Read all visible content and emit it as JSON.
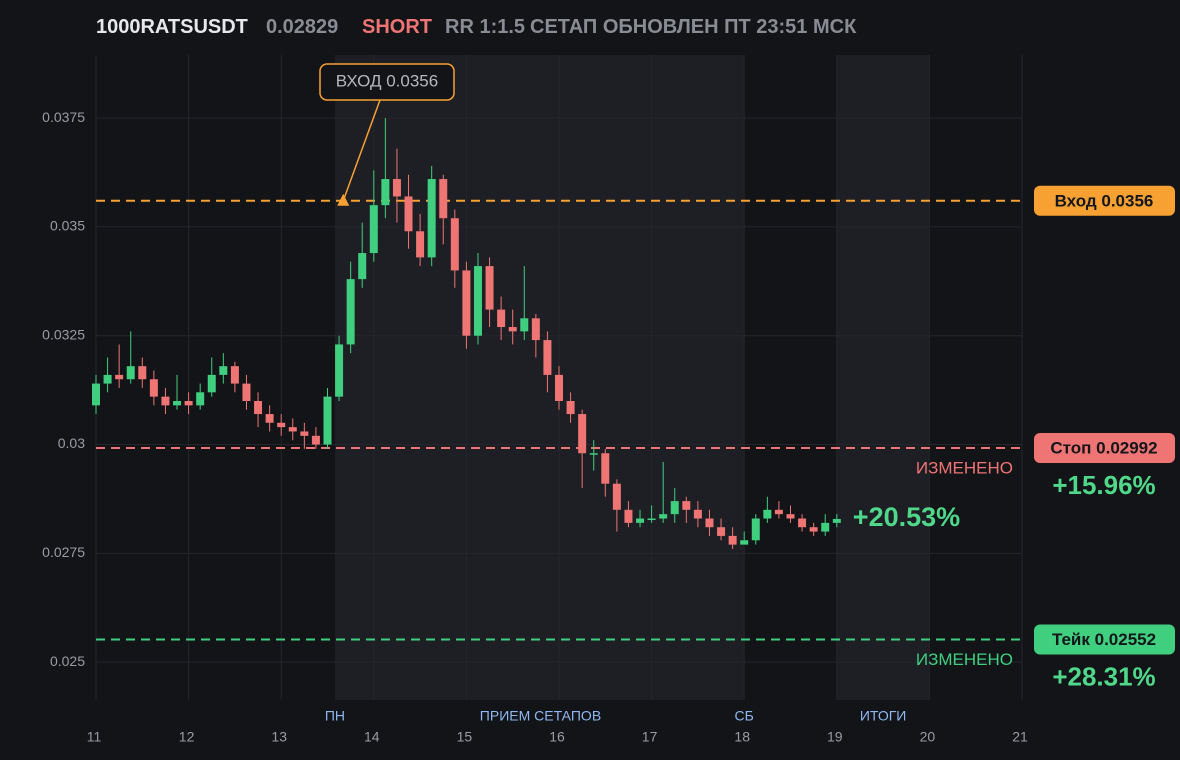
{
  "chart_data": {
    "type": "candlestick",
    "header": {
      "symbol": "1000RATSUSDT",
      "price": 0.02829,
      "side": "SHORT",
      "rr": "RR 1:1.5",
      "updated": "СЕТАП ОБНОВЛЕН ПТ 23:51 МСК"
    },
    "xlim": [
      11,
      21
    ],
    "xticks": [
      11,
      12,
      13,
      14,
      15,
      16,
      17,
      18,
      19,
      20,
      21
    ],
    "ylim": [
      0.02413,
      0.03895
    ],
    "yticks": [
      0.025,
      0.0275,
      0.03,
      0.0325,
      0.035,
      0.0375
    ],
    "grid": true,
    "up_color": "#3fcf7f",
    "down_color": "#ef7474",
    "shaded": [
      [
        13.58,
        18.0
      ],
      [
        19.0,
        20.0
      ]
    ],
    "sessions": [
      {
        "label": "ПН",
        "x": 13.58
      },
      {
        "label": "ПРИЕМ СЕТАПОВ",
        "x": 15.8
      },
      {
        "label": "СБ",
        "x": 18.0
      },
      {
        "label": "ИТОГИ",
        "x": 19.5
      }
    ],
    "x": [
      11.0,
      11.125,
      11.25,
      11.375,
      11.5,
      11.625,
      11.75,
      11.875,
      12.0,
      12.125,
      12.25,
      12.375,
      12.5,
      12.625,
      12.75,
      12.875,
      13.0,
      13.125,
      13.25,
      13.375,
      13.5,
      13.625,
      13.75,
      13.875,
      14.0,
      14.125,
      14.25,
      14.375,
      14.5,
      14.625,
      14.75,
      14.875,
      15.0,
      15.125,
      15.25,
      15.375,
      15.5,
      15.625,
      15.75,
      15.875,
      16.0,
      16.125,
      16.25,
      16.375,
      16.5,
      16.625,
      16.75,
      16.875,
      17.0,
      17.125,
      17.25,
      17.375,
      17.5,
      17.625,
      17.75,
      17.875,
      18.0,
      18.125,
      18.25,
      18.375,
      18.5,
      18.625,
      18.75,
      18.875,
      19.0
    ],
    "open": [
      0.0309,
      0.0314,
      0.0316,
      0.0315,
      0.0318,
      0.0315,
      0.0311,
      0.0309,
      0.031,
      0.0309,
      0.0312,
      0.0316,
      0.0318,
      0.0314,
      0.031,
      0.0307,
      0.0305,
      0.0304,
      0.0303,
      0.0302,
      0.03,
      0.0311,
      0.0323,
      0.0338,
      0.0344,
      0.0355,
      0.0361,
      0.0357,
      0.0349,
      0.0343,
      0.0361,
      0.0352,
      0.034,
      0.0325,
      0.0341,
      0.0331,
      0.0327,
      0.0326,
      0.0329,
      0.0324,
      0.0316,
      0.031,
      0.0307,
      0.0298,
      0.0298,
      0.0291,
      0.0285,
      0.0282,
      0.0283,
      0.0283,
      0.0284,
      0.0287,
      0.0285,
      0.0283,
      0.0281,
      0.0279,
      0.0277,
      0.0278,
      0.0283,
      0.0285,
      0.0284,
      0.0283,
      0.0281,
      0.028,
      0.0282
    ],
    "high": [
      0.0316,
      0.032,
      0.0323,
      0.0326,
      0.032,
      0.0317,
      0.0313,
      0.0316,
      0.0312,
      0.0314,
      0.032,
      0.0321,
      0.0319,
      0.0316,
      0.0312,
      0.0309,
      0.0307,
      0.0306,
      0.0305,
      0.0304,
      0.0313,
      0.0325,
      0.0342,
      0.0351,
      0.0363,
      0.0375,
      0.0368,
      0.0362,
      0.0353,
      0.0364,
      0.0362,
      0.0354,
      0.0342,
      0.0344,
      0.0343,
      0.0334,
      0.0331,
      0.0341,
      0.033,
      0.0326,
      0.0318,
      0.0312,
      0.0308,
      0.0301,
      0.0299,
      0.0292,
      0.0287,
      0.0285,
      0.0286,
      0.0296,
      0.029,
      0.0288,
      0.0287,
      0.0285,
      0.0283,
      0.0281,
      0.028,
      0.0284,
      0.0288,
      0.0287,
      0.0286,
      0.0284,
      0.0282,
      0.0284,
      0.0284
    ],
    "low": [
      0.0307,
      0.0312,
      0.0313,
      0.0314,
      0.0313,
      0.0309,
      0.0307,
      0.0308,
      0.0307,
      0.0308,
      0.0311,
      0.0314,
      0.0312,
      0.0308,
      0.0304,
      0.0303,
      0.0302,
      0.0301,
      0.0299,
      0.0299,
      0.0299,
      0.031,
      0.0321,
      0.0336,
      0.0342,
      0.0352,
      0.0351,
      0.0345,
      0.0341,
      0.0341,
      0.0346,
      0.0336,
      0.0322,
      0.0323,
      0.0327,
      0.0324,
      0.0323,
      0.0324,
      0.032,
      0.0312,
      0.0308,
      0.0305,
      0.029,
      0.0294,
      0.0288,
      0.028,
      0.0281,
      0.0281,
      0.0282,
      0.0282,
      0.0282,
      0.0282,
      0.0281,
      0.0279,
      0.0278,
      0.0276,
      0.0277,
      0.0277,
      0.0282,
      0.0283,
      0.0282,
      0.028,
      0.0279,
      0.0279,
      0.0281
    ],
    "close": [
      0.0314,
      0.0316,
      0.0315,
      0.0318,
      0.0315,
      0.0311,
      0.0309,
      0.031,
      0.0309,
      0.0312,
      0.0316,
      0.0318,
      0.0314,
      0.031,
      0.0307,
      0.0305,
      0.0304,
      0.0303,
      0.0302,
      0.03,
      0.0311,
      0.0323,
      0.0338,
      0.0344,
      0.0355,
      0.0361,
      0.0357,
      0.0349,
      0.0343,
      0.0361,
      0.0352,
      0.034,
      0.0325,
      0.0341,
      0.0331,
      0.0327,
      0.0326,
      0.0329,
      0.0324,
      0.0316,
      0.031,
      0.0307,
      0.0298,
      0.0298,
      0.0291,
      0.0285,
      0.0282,
      0.0283,
      0.0283,
      0.0284,
      0.0287,
      0.0285,
      0.0283,
      0.0281,
      0.0279,
      0.0277,
      0.0278,
      0.0283,
      0.0285,
      0.0284,
      0.0283,
      0.0281,
      0.028,
      0.0282,
      0.02829
    ],
    "levels": [
      {
        "label": "Вход 0.0356",
        "value": 0.0356,
        "color": "#f7a132"
      },
      {
        "label": "Стоп 0.02992",
        "value": 0.02992,
        "color": "#ef7474",
        "note": "ИЗМЕНЕНО",
        "change": "+15.96%"
      },
      {
        "label": "Тейк 0.02552",
        "value": 0.02552,
        "color": "#3fcf7f",
        "note": "ИЗМЕНЕНО",
        "change": "+28.31%"
      }
    ],
    "annotation": {
      "text": "ВХОД 0.0356",
      "x": 13.67,
      "y": 0.0356
    },
    "current_change": "+20.53%"
  }
}
